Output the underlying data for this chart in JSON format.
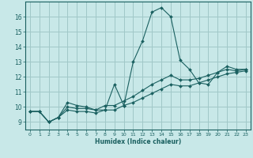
{
  "xlabel": "Humidex (Indice chaleur)",
  "bg_color": "#c8e8e8",
  "grid_color": "#a0c8c8",
  "line_color": "#1a6060",
  "spine_color": "#1a6060",
  "xlim": [
    -0.5,
    23.5
  ],
  "ylim": [
    8.5,
    17.0
  ],
  "xticks": [
    0,
    1,
    2,
    3,
    4,
    5,
    6,
    7,
    8,
    9,
    10,
    11,
    12,
    13,
    14,
    15,
    16,
    17,
    18,
    19,
    20,
    21,
    22,
    23
  ],
  "yticks": [
    9,
    10,
    11,
    12,
    13,
    14,
    15,
    16
  ],
  "line1_x": [
    0,
    1,
    2,
    3,
    4,
    5,
    6,
    7,
    8,
    9,
    10,
    11,
    12,
    13,
    14,
    15,
    16,
    17,
    18,
    19,
    20,
    21,
    22,
    23
  ],
  "line1_y": [
    9.7,
    9.7,
    9.0,
    9.3,
    10.3,
    10.1,
    10.0,
    9.8,
    9.8,
    11.5,
    10.1,
    13.0,
    14.4,
    16.3,
    16.6,
    16.0,
    13.1,
    12.5,
    11.6,
    11.5,
    12.3,
    12.7,
    12.5,
    12.5
  ],
  "line2_x": [
    0,
    1,
    2,
    3,
    4,
    5,
    6,
    7,
    8,
    9,
    10,
    11,
    12,
    13,
    14,
    15,
    16,
    17,
    18,
    19,
    20,
    21,
    22,
    23
  ],
  "line2_y": [
    9.7,
    9.7,
    9.0,
    9.3,
    10.0,
    9.9,
    9.9,
    9.8,
    10.1,
    10.1,
    10.4,
    10.7,
    11.1,
    11.5,
    11.8,
    12.1,
    11.8,
    11.8,
    11.9,
    12.1,
    12.3,
    12.5,
    12.4,
    12.5
  ],
  "line3_x": [
    0,
    1,
    2,
    3,
    4,
    5,
    6,
    7,
    8,
    9,
    10,
    11,
    12,
    13,
    14,
    15,
    16,
    17,
    18,
    19,
    20,
    21,
    22,
    23
  ],
  "line3_y": [
    9.7,
    9.7,
    9.0,
    9.3,
    9.8,
    9.7,
    9.7,
    9.6,
    9.8,
    9.8,
    10.1,
    10.3,
    10.6,
    10.9,
    11.2,
    11.5,
    11.4,
    11.4,
    11.6,
    11.8,
    12.0,
    12.2,
    12.3,
    12.4
  ]
}
